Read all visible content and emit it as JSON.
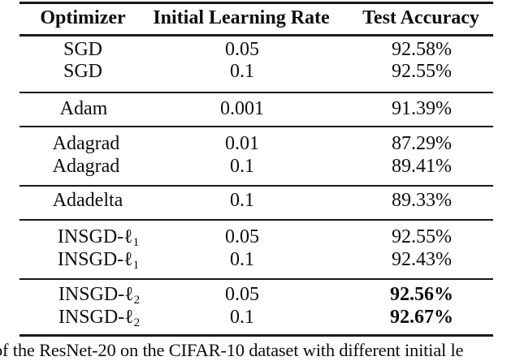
{
  "table": {
    "headers": [
      "Optimizer",
      "Initial Learning Rate",
      "Test Accuracy"
    ],
    "rows": [
      {
        "optimizer": "SGD",
        "sub": "",
        "lr": "0.05",
        "acc": "92.58%",
        "bold": false
      },
      {
        "optimizer": "SGD",
        "sub": "",
        "lr": "0.1",
        "acc": "92.55%",
        "bold": false
      },
      {
        "optimizer": "Adam",
        "sub": "",
        "lr": "0.001",
        "acc": "91.39%",
        "bold": false
      },
      {
        "optimizer": "Adagrad",
        "sub": "",
        "lr": "0.01",
        "acc": "87.29%",
        "bold": false
      },
      {
        "optimizer": "Adagrad",
        "sub": "",
        "lr": "0.1",
        "acc": "89.41%",
        "bold": false
      },
      {
        "optimizer": "Adadelta",
        "sub": "",
        "lr": "0.1",
        "acc": "89.33%",
        "bold": false
      },
      {
        "optimizer": "INSGD-ℓ",
        "sub": "1",
        "lr": "0.05",
        "acc": "92.55%",
        "bold": false
      },
      {
        "optimizer": "INSGD-ℓ",
        "sub": "1",
        "lr": "0.1",
        "acc": "92.43%",
        "bold": false
      },
      {
        "optimizer": "INSGD-ℓ",
        "sub": "2",
        "lr": "0.05",
        "acc": "92.56%",
        "bold": true
      },
      {
        "optimizer": "INSGD-ℓ",
        "sub": "2",
        "lr": "0.1",
        "acc": "92.67%",
        "bold": true
      }
    ]
  },
  "caption": "of the ResNet-20 on the CIFAR-10 dataset with different initial le",
  "colors": {
    "background": "#ffffff",
    "text": "#0d0d0d",
    "rule": "#1a1a1a"
  }
}
